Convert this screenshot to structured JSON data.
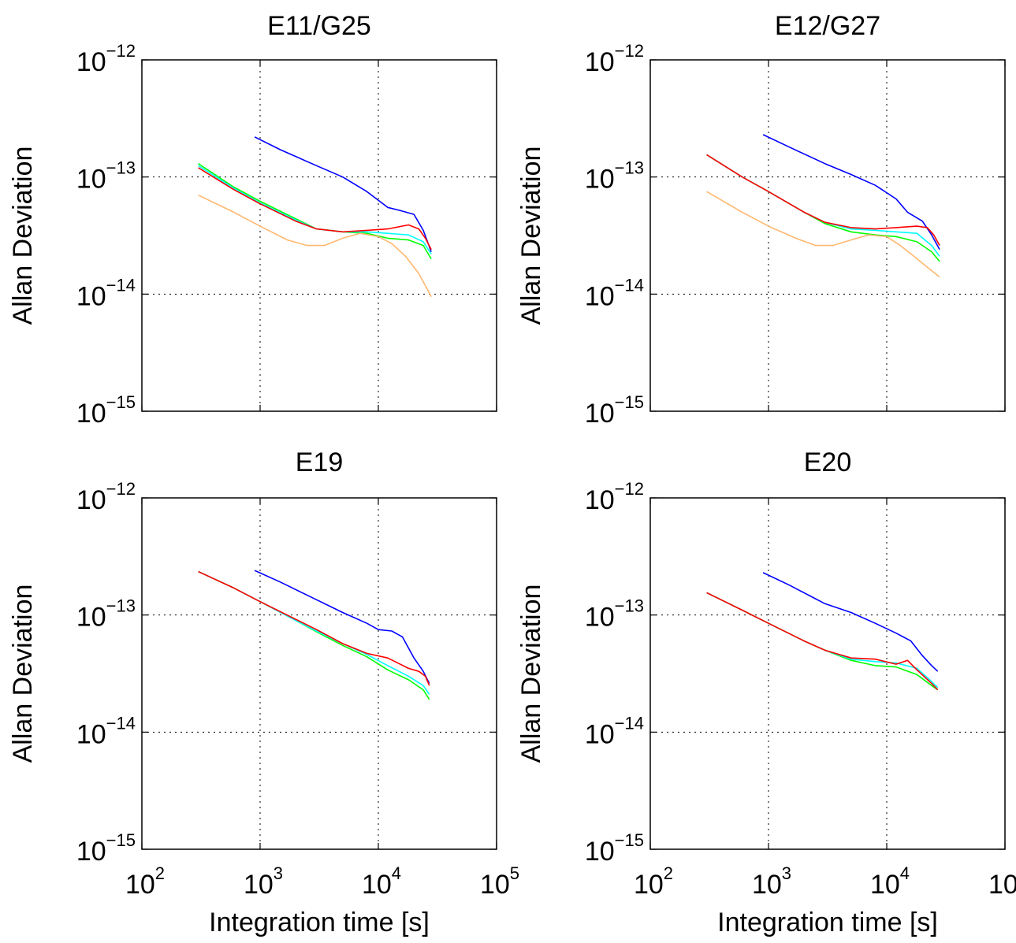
{
  "chart_data": [
    {
      "type": "line",
      "title": "E11/G25",
      "xlabel": "",
      "ylabel": "Allan Deviation",
      "xscale": "log",
      "yscale": "log",
      "xlim": [
        100,
        100000
      ],
      "ylim": [
        1e-15,
        1e-12
      ],
      "grid": true,
      "show_x_ticklabels": false,
      "series": [
        {
          "color": "#0000ff",
          "x": [
            900,
            1500,
            3000,
            5000,
            8000,
            12000,
            15000,
            20000,
            24000,
            28000
          ],
          "y": [
            2.2e-13,
            1.7e-13,
            1.25e-13,
            1e-13,
            7.5e-14,
            5.5e-14,
            5.2e-14,
            4.8e-14,
            3.5e-14,
            2.3e-14
          ]
        },
        {
          "color": "#00ff00",
          "x": [
            300,
            600,
            1000,
            2000,
            3000,
            5000,
            8000,
            12000,
            18000,
            24000,
            28000
          ],
          "y": [
            1.3e-13,
            8.2e-14,
            6.2e-14,
            4.4e-14,
            3.6e-14,
            3.4e-14,
            3.3e-14,
            3e-14,
            2.9e-14,
            2.6e-14,
            2e-14
          ]
        },
        {
          "color": "#00ffff",
          "x": [
            300,
            600,
            1000,
            2000,
            3000,
            5000,
            8000,
            12000,
            18000,
            24000,
            28000
          ],
          "y": [
            1.25e-13,
            8e-14,
            6e-14,
            4.3e-14,
            3.6e-14,
            3.4e-14,
            3.4e-14,
            3.3e-14,
            3.2e-14,
            2.8e-14,
            2.2e-14
          ]
        },
        {
          "color": "#ff0000",
          "x": [
            300,
            600,
            1000,
            2000,
            3000,
            5000,
            8000,
            12000,
            18000,
            22000,
            25000,
            28000
          ],
          "y": [
            1.2e-13,
            7.8e-14,
            5.9e-14,
            4.2e-14,
            3.6e-14,
            3.4e-14,
            3.5e-14,
            3.6e-14,
            3.9e-14,
            3.6e-14,
            3e-14,
            2.4e-14
          ]
        },
        {
          "color": "#ffb870",
          "x": [
            300,
            600,
            1000,
            1700,
            2500,
            3500,
            5000,
            7000,
            10000,
            13000,
            17000,
            22000,
            28000
          ],
          "y": [
            7e-14,
            5e-14,
            3.8e-14,
            2.9e-14,
            2.6e-14,
            2.6e-14,
            3e-14,
            3.3e-14,
            3.1e-14,
            2.7e-14,
            2.1e-14,
            1.5e-14,
            9.5e-15
          ]
        }
      ]
    },
    {
      "type": "line",
      "title": "E12/G27",
      "xlabel": "",
      "ylabel": "Allan Deviation",
      "xscale": "log",
      "yscale": "log",
      "xlim": [
        100,
        100000
      ],
      "ylim": [
        1e-15,
        1e-12
      ],
      "grid": true,
      "show_x_ticklabels": false,
      "series": [
        {
          "color": "#0000ff",
          "x": [
            900,
            1500,
            3000,
            5000,
            8000,
            12000,
            15000,
            20000,
            24000,
            28000
          ],
          "y": [
            2.3e-13,
            1.8e-13,
            1.3e-13,
            1.05e-13,
            8.5e-14,
            6.5e-14,
            5e-14,
            4.2e-14,
            3.2e-14,
            2.4e-14
          ]
        },
        {
          "color": "#00ff00",
          "x": [
            300,
            600,
            1000,
            2000,
            3000,
            5000,
            8000,
            12000,
            18000,
            24000,
            28000
          ],
          "y": [
            1.55e-13,
            1e-13,
            7.5e-14,
            5e-14,
            4e-14,
            3.4e-14,
            3.2e-14,
            3.1e-14,
            2.8e-14,
            2.3e-14,
            1.9e-14
          ]
        },
        {
          "color": "#00ffff",
          "x": [
            300,
            600,
            1000,
            2000,
            3000,
            5000,
            8000,
            12000,
            18000,
            24000,
            28000
          ],
          "y": [
            1.55e-13,
            1e-13,
            7.5e-14,
            5e-14,
            4.1e-14,
            3.6e-14,
            3.5e-14,
            3.4e-14,
            3.3e-14,
            2.6e-14,
            2.1e-14
          ]
        },
        {
          "color": "#ff0000",
          "x": [
            300,
            600,
            1000,
            2000,
            3000,
            5000,
            8000,
            12000,
            18000,
            22000,
            25000,
            28000
          ],
          "y": [
            1.55e-13,
            1e-13,
            7.5e-14,
            5e-14,
            4.1e-14,
            3.7e-14,
            3.6e-14,
            3.7e-14,
            3.8e-14,
            3.7e-14,
            3.2e-14,
            2.6e-14
          ]
        },
        {
          "color": "#ffb870",
          "x": [
            300,
            600,
            1000,
            1700,
            2500,
            3500,
            5000,
            7000,
            10000,
            13000,
            17000,
            22000,
            28000
          ],
          "y": [
            7.5e-14,
            5e-14,
            3.8e-14,
            3e-14,
            2.6e-14,
            2.6e-14,
            2.9e-14,
            3.2e-14,
            3.1e-14,
            2.6e-14,
            2.1e-14,
            1.7e-14,
            1.4e-14
          ]
        }
      ]
    },
    {
      "type": "line",
      "title": "E19",
      "xlabel": "Integration time [s]",
      "ylabel": "Allan Deviation",
      "xscale": "log",
      "yscale": "log",
      "xlim": [
        100,
        100000
      ],
      "ylim": [
        1e-15,
        1e-12
      ],
      "grid": true,
      "show_x_ticklabels": true,
      "series": [
        {
          "color": "#0000ff",
          "x": [
            900,
            1500,
            3000,
            5000,
            8000,
            10000,
            13000,
            16000,
            20000,
            24000,
            27000
          ],
          "y": [
            2.4e-13,
            1.9e-13,
            1.35e-13,
            1.05e-13,
            8.5e-14,
            7.5e-14,
            7.3e-14,
            6.5e-14,
            4.3e-14,
            3.3e-14,
            2.6e-14
          ]
        },
        {
          "color": "#00ff00",
          "x": [
            300,
            600,
            1000,
            2000,
            3000,
            5000,
            8000,
            12000,
            18000,
            24000,
            27000
          ],
          "y": [
            2.35e-13,
            1.7e-13,
            1.3e-13,
            9e-14,
            7.2e-14,
            5.5e-14,
            4.4e-14,
            3.4e-14,
            2.8e-14,
            2.3e-14,
            1.9e-14
          ]
        },
        {
          "color": "#00ffff",
          "x": [
            300,
            600,
            1000,
            2000,
            3000,
            5000,
            8000,
            12000,
            18000,
            24000,
            27000
          ],
          "y": [
            2.35e-13,
            1.7e-13,
            1.3e-13,
            9e-14,
            7.3e-14,
            5.7e-14,
            4.6e-14,
            3.7e-14,
            3e-14,
            2.5e-14,
            2.1e-14
          ]
        },
        {
          "color": "#ff0000",
          "x": [
            300,
            600,
            1000,
            2000,
            3000,
            5000,
            8000,
            12000,
            18000,
            22000,
            25000,
            27000
          ],
          "y": [
            2.35e-13,
            1.7e-13,
            1.3e-13,
            9.2e-14,
            7.5e-14,
            5.7e-14,
            4.7e-14,
            4.3e-14,
            3.5e-14,
            3.3e-14,
            3e-14,
            2.5e-14
          ]
        }
      ]
    },
    {
      "type": "line",
      "title": "E20",
      "xlabel": "Integration time [s]",
      "ylabel": "Allan Deviation",
      "xscale": "log",
      "yscale": "log",
      "xlim": [
        100,
        100000
      ],
      "ylim": [
        1e-15,
        1e-12
      ],
      "grid": true,
      "show_x_ticklabels": true,
      "series": [
        {
          "color": "#0000ff",
          "x": [
            900,
            1500,
            3000,
            5000,
            8000,
            12000,
            16000,
            20000,
            24000,
            27000
          ],
          "y": [
            2.3e-13,
            1.8e-13,
            1.25e-13,
            1.05e-13,
            8.5e-14,
            7e-14,
            6e-14,
            4.5e-14,
            3.7e-14,
            3.3e-14
          ]
        },
        {
          "color": "#00ff00",
          "x": [
            300,
            600,
            1000,
            2000,
            3000,
            5000,
            8000,
            12000,
            18000,
            24000,
            27000
          ],
          "y": [
            1.55e-13,
            1.1e-13,
            8.5e-14,
            6e-14,
            5e-14,
            4.1e-14,
            3.7e-14,
            3.6e-14,
            3.1e-14,
            2.5e-14,
            2.3e-14
          ]
        },
        {
          "color": "#00ffff",
          "x": [
            300,
            600,
            1000,
            2000,
            3000,
            5000,
            8000,
            12000,
            18000,
            24000,
            27000
          ],
          "y": [
            1.55e-13,
            1.1e-13,
            8.5e-14,
            6e-14,
            5e-14,
            4.2e-14,
            4e-14,
            3.9e-14,
            3.5e-14,
            2.7e-14,
            2.4e-14
          ]
        },
        {
          "color": "#ff0000",
          "x": [
            300,
            600,
            1000,
            2000,
            3000,
            5000,
            8000,
            12000,
            15000,
            18000,
            24000,
            27000
          ],
          "y": [
            1.55e-13,
            1.1e-13,
            8.5e-14,
            6e-14,
            5e-14,
            4.3e-14,
            4.2e-14,
            3.8e-14,
            4.1e-14,
            3.4e-14,
            2.6e-14,
            2.3e-14
          ]
        }
      ]
    }
  ]
}
